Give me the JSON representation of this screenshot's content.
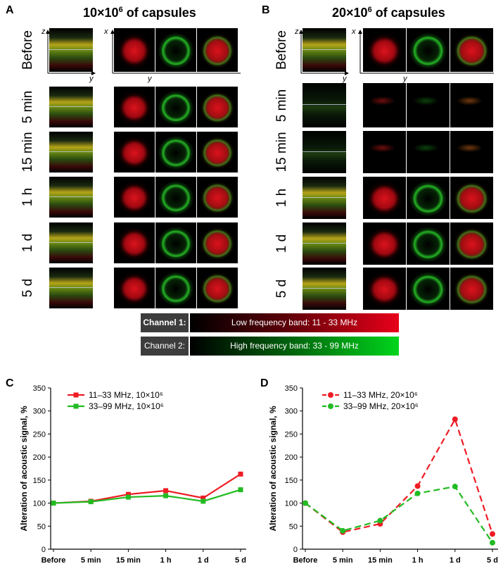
{
  "panels": {
    "A": {
      "letter": "A",
      "title_base": "10×10",
      "title_exp": "6",
      "title_rest": " of capsules"
    },
    "B": {
      "letter": "B",
      "title_base": "20×10",
      "title_exp": "6",
      "title_rest": " of capsules"
    },
    "C": {
      "letter": "C"
    },
    "D": {
      "letter": "D"
    }
  },
  "axis_letters": {
    "z": "z",
    "y": "y",
    "x": "x"
  },
  "rows": [
    "Before",
    "5 min",
    "15 min",
    "1 h",
    "1 d",
    "5 d"
  ],
  "channels": {
    "ch1": {
      "label": "Channel 1:",
      "band": "Low frequency band: 11 - 33 MHz",
      "color": "#e8001a"
    },
    "ch2": {
      "label": "Channel 2:",
      "band": "High frequency band: 33 - 99 MHz",
      "color": "#00d41c"
    }
  },
  "chart_data": [
    {
      "type": "line",
      "panel": "C",
      "categories": [
        "Before",
        "5 min",
        "15 min",
        "1 h",
        "1 d",
        "5 d"
      ],
      "ylabel": "Alteration of acoustic signal, %",
      "ylim": [
        0,
        350
      ],
      "yticks": [
        0,
        50,
        100,
        150,
        200,
        250,
        300,
        350
      ],
      "series": [
        {
          "name": "11–33 MHz, 10×10⁶",
          "color": "#ee1c24",
          "marker": "square",
          "dashed": false,
          "values": [
            100,
            104,
            119,
            127,
            111,
            163
          ]
        },
        {
          "name": "33–99 MHz, 10×10⁶",
          "color": "#22bb22",
          "marker": "square",
          "dashed": false,
          "values": [
            100,
            103,
            113,
            116,
            104,
            129
          ]
        }
      ]
    },
    {
      "type": "line",
      "panel": "D",
      "categories": [
        "Before",
        "5 min",
        "15 min",
        "1 h",
        "1 d",
        "5 d"
      ],
      "ylabel": "Alteration of acoustic signal, %",
      "ylim": [
        0,
        350
      ],
      "yticks": [
        0,
        50,
        100,
        150,
        200,
        250,
        300,
        350
      ],
      "series": [
        {
          "name": "11–33 MHz, 20×10⁶",
          "color": "#ee1c24",
          "marker": "circle",
          "dashed": true,
          "values": [
            100,
            37,
            55,
            137,
            282,
            33
          ]
        },
        {
          "name": "33–99 MHz, 20×10⁶",
          "color": "#22bb22",
          "marker": "circle",
          "dashed": true,
          "values": [
            100,
            40,
            62,
            121,
            136,
            14
          ]
        }
      ]
    }
  ]
}
